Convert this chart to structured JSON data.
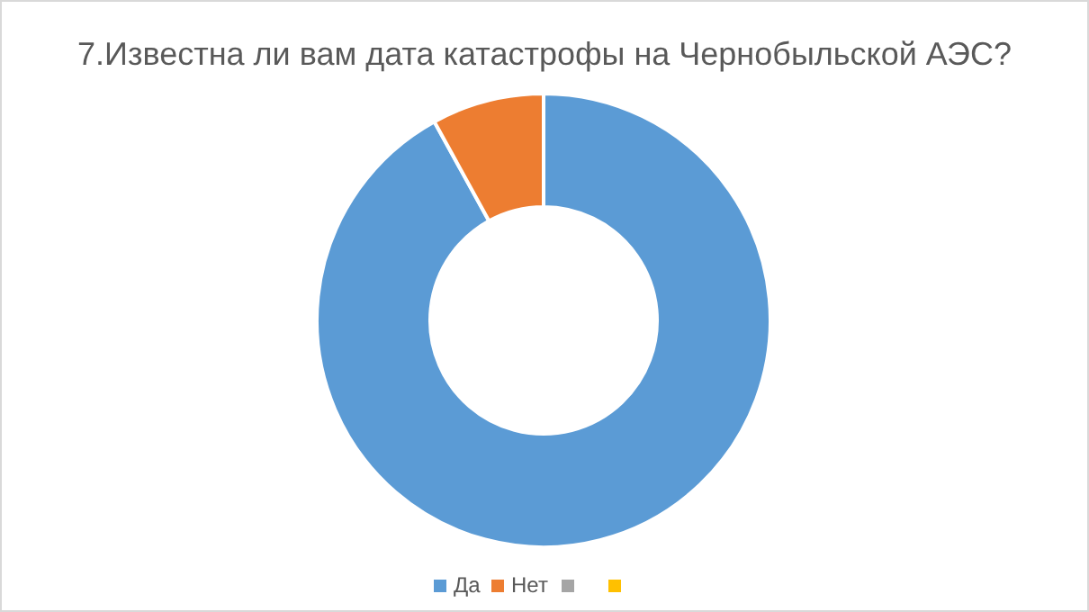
{
  "chart_data": {
    "type": "donut",
    "title": "7.Известна ли вам дата катастрофы на Чернобыльской АЭС?",
    "categories": [
      "Да",
      "Нет",
      null,
      null
    ],
    "values": [
      92,
      8,
      0,
      0
    ],
    "colors": [
      "#5b9bd5",
      "#ed7d31",
      "#a5a5a5",
      "#ffc000"
    ],
    "legend": "bottom"
  }
}
